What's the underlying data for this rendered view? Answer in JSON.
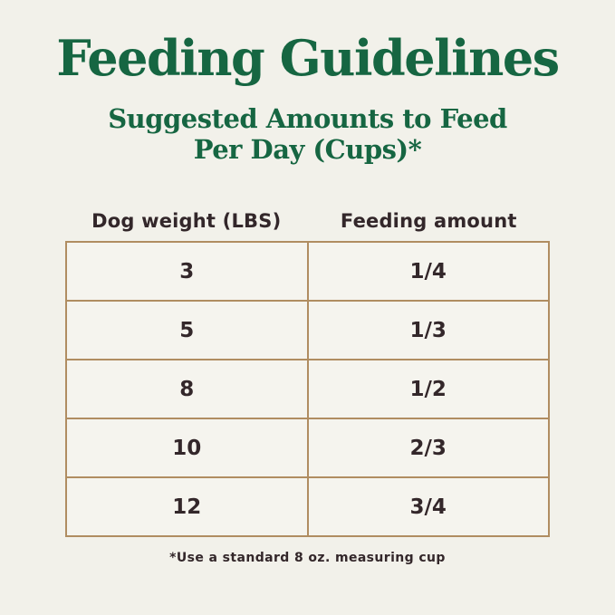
{
  "infographic": {
    "title": "Feeding Guidelines",
    "subtitle_line1": "Suggested Amounts to Feed",
    "subtitle_line2": "Per Day (Cups)*",
    "footnote": "*Use a standard 8 oz. measuring cup"
  },
  "table": {
    "col1_header": "Dog weight (LBS)",
    "col2_header": "Feeding amount",
    "rows": [
      {
        "weight": "3",
        "amount": "1/4"
      },
      {
        "weight": "5",
        "amount": "1/3"
      },
      {
        "weight": "8",
        "amount": "1/2"
      },
      {
        "weight": "10",
        "amount": "2/3"
      },
      {
        "weight": "12",
        "amount": "3/4"
      }
    ]
  },
  "chart_data": {
    "type": "table",
    "title": "Feeding Guidelines",
    "subtitle": "Suggested Amounts to Feed Per Day (Cups)*",
    "columns": [
      "Dog weight (LBS)",
      "Feeding amount"
    ],
    "rows": [
      [
        "3",
        "1/4"
      ],
      [
        "5",
        "1/3"
      ],
      [
        "8",
        "1/2"
      ],
      [
        "10",
        "2/3"
      ],
      [
        "12",
        "3/4"
      ]
    ],
    "footnote": "*Use a standard 8 oz. measuring cup"
  },
  "colors": {
    "background": "#f2f1ea",
    "heading_green": "#166642",
    "text_dark": "#33272a",
    "table_border": "#b08d61",
    "cell_background": "#f5f4ee"
  }
}
